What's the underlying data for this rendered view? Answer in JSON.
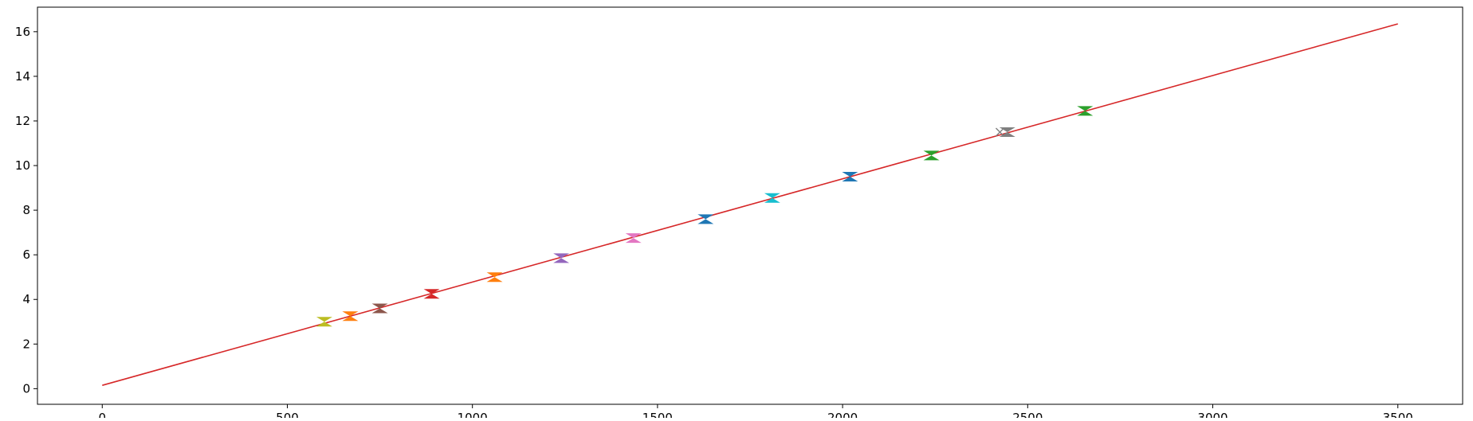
{
  "chart_data": {
    "type": "scatter",
    "title": "",
    "xlabel": "",
    "ylabel": "",
    "xlim": [
      -175,
      3675
    ],
    "ylim": [
      -0.7,
      17.1
    ],
    "x_ticks": [
      0,
      500,
      1000,
      1500,
      2000,
      2500,
      3000,
      3500
    ],
    "y_ticks": [
      0,
      2,
      4,
      6,
      8,
      10,
      12,
      14,
      16
    ],
    "grid": false,
    "legend": "none",
    "fit_line": {
      "x": [
        0,
        3500
      ],
      "y": [
        0.15,
        16.35
      ],
      "color": "#d62728"
    },
    "marker_pairs": [
      {
        "x": 600,
        "y": 3.0,
        "color": "#bcbd22"
      },
      {
        "x": 670,
        "y": 3.25,
        "color": "#ff7f0e"
      },
      {
        "x": 750,
        "y": 3.6,
        "color": "#8c564b"
      },
      {
        "x": 890,
        "y": 4.25,
        "color": "#d62728"
      },
      {
        "x": 1060,
        "y": 5.0,
        "color": "#ff7f0e"
      },
      {
        "x": 1240,
        "y": 5.85,
        "color": "#9467bd"
      },
      {
        "x": 1435,
        "y": 6.75,
        "color": "#e377c2"
      },
      {
        "x": 1630,
        "y": 7.6,
        "color": "#1f77b4"
      },
      {
        "x": 1810,
        "y": 8.55,
        "color": "#17becf"
      },
      {
        "x": 2020,
        "y": 9.5,
        "color": "#1f77b4"
      },
      {
        "x": 2240,
        "y": 10.45,
        "color": "#2ca02c"
      },
      {
        "x": 2445,
        "y": 11.5,
        "color": "#7f7f7f"
      },
      {
        "x": 2655,
        "y": 12.45,
        "color": "#2ca02c"
      }
    ],
    "extra_markers": [
      {
        "x": 2425,
        "y": 11.5,
        "color": "#7f7f7f",
        "symbol": "x"
      }
    ]
  }
}
